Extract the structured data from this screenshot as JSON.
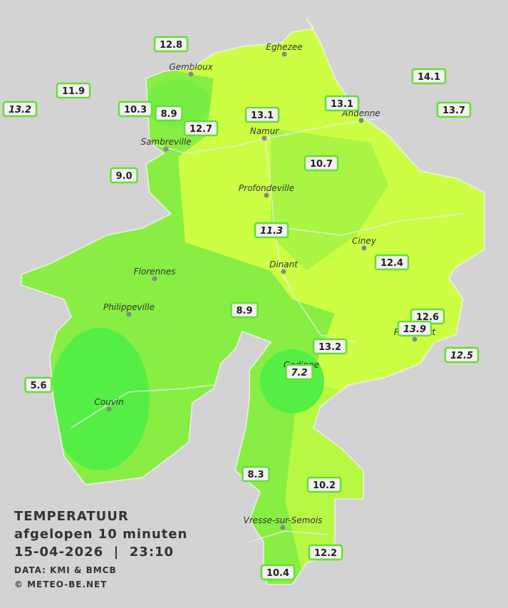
{
  "header": {
    "title": "TEMPERATUUR",
    "subtitle": "afgelopen 10 minuten",
    "timestamp": "15-04-2026  |  23:10",
    "source": "DATA: KMI & BMCB",
    "copyright": "© METEO-BE.NET"
  },
  "cities": [
    "Eghezee",
    "Gembloux",
    "Andenne",
    "Namur",
    "Sambreville",
    "Profondeville",
    "Ciney",
    "Dinant",
    "Florennes",
    "Philippeville",
    "Rochefort",
    "Gedinne",
    "Couvin",
    "Vresse-sur-Semois"
  ],
  "stations": [
    {
      "text": "12.8",
      "italic": false
    },
    {
      "text": "11.9",
      "italic": false
    },
    {
      "text": "13.2",
      "italic": true
    },
    {
      "text": "10.3",
      "italic": false
    },
    {
      "text": "8.9",
      "italic": false
    },
    {
      "text": "12.7",
      "italic": false
    },
    {
      "text": "13.1",
      "italic": false
    },
    {
      "text": "13.1",
      "italic": false
    },
    {
      "text": "14.1",
      "italic": false
    },
    {
      "text": "13.7",
      "italic": false
    },
    {
      "text": "9.0",
      "italic": false
    },
    {
      "text": "10.7",
      "italic": false
    },
    {
      "text": "11.3",
      "italic": true
    },
    {
      "text": "12.4",
      "italic": false
    },
    {
      "text": "8.9",
      "italic": false
    },
    {
      "text": "12.6",
      "italic": false
    },
    {
      "text": "13.9",
      "italic": true
    },
    {
      "text": "13.2",
      "italic": false
    },
    {
      "text": "12.5",
      "italic": true
    },
    {
      "text": "7.2",
      "italic": true
    },
    {
      "text": "5.6",
      "italic": false
    },
    {
      "text": "8.3",
      "italic": false
    },
    {
      "text": "10.2",
      "italic": false
    },
    {
      "text": "12.2",
      "italic": false
    },
    {
      "text": "10.4",
      "italic": false
    }
  ]
}
